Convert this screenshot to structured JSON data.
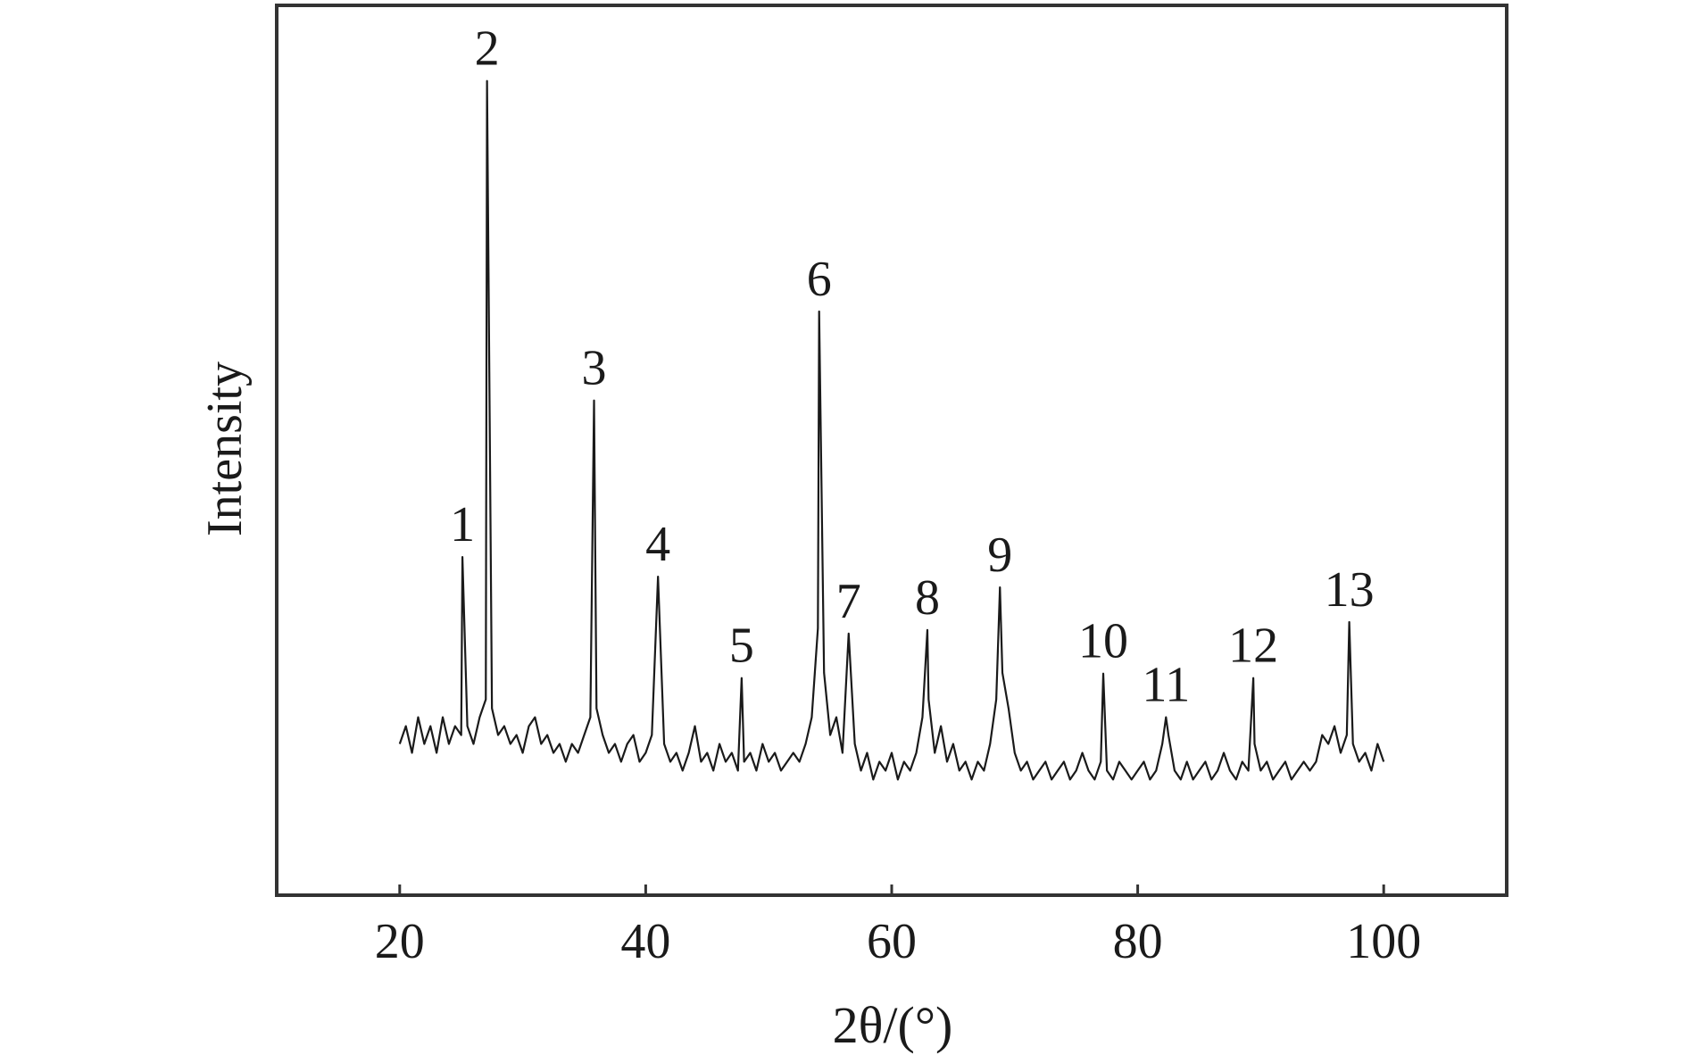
{
  "chart_data": {
    "type": "line",
    "xlabel": "2θ/(°)",
    "ylabel": "Intensity",
    "xlim": [
      10,
      110
    ],
    "ylim": [
      0,
      100
    ],
    "xticks": [
      20,
      40,
      60,
      80,
      100
    ],
    "series": [
      {
        "color": "#1a1a1a",
        "x": [
          20,
          20.5,
          21,
          21.5,
          22,
          22.5,
          23,
          23.5,
          24,
          24.5,
          25,
          25.1,
          25.5,
          26,
          26.5,
          27,
          27.1,
          27.5,
          28,
          28.5,
          29,
          29.5,
          30,
          30.5,
          31,
          31.5,
          32,
          32.5,
          33,
          33.5,
          34,
          34.5,
          35,
          35.5,
          35.8,
          36,
          36.5,
          37,
          37.5,
          38,
          38.5,
          39,
          39.5,
          40,
          40.5,
          41,
          41.5,
          42,
          42.5,
          43,
          43.5,
          44,
          44.5,
          45,
          45.5,
          46,
          46.5,
          47,
          47.5,
          47.8,
          48,
          48.5,
          49,
          49.5,
          50,
          50.5,
          51,
          51.5,
          52,
          52.5,
          53,
          53.5,
          54,
          54.1,
          54.5,
          55,
          55.5,
          56,
          56.5,
          57,
          57.5,
          58,
          58.5,
          59,
          59.5,
          60,
          60.5,
          61,
          61.5,
          62,
          62.5,
          62.9,
          63,
          63.5,
          64,
          64.5,
          65,
          65.5,
          66,
          66.5,
          67,
          67.5,
          68,
          68.5,
          68.8,
          69,
          69.5,
          70,
          70.5,
          71,
          71.5,
          72,
          72.5,
          73,
          73.5,
          74,
          74.5,
          75,
          75.5,
          76,
          76.5,
          77,
          77.2,
          77.5,
          78,
          78.5,
          79,
          79.5,
          80,
          80.5,
          81,
          81.5,
          82,
          82.3,
          82.5,
          83,
          83.5,
          84,
          84.5,
          85,
          85.5,
          86,
          86.5,
          87,
          87.5,
          88,
          88.5,
          89,
          89.4,
          89.5,
          90,
          90.5,
          91,
          91.5,
          92,
          92.5,
          93,
          93.5,
          94,
          94.5,
          95,
          95.5,
          96,
          96.5,
          97,
          97.2,
          97.5,
          98,
          98.5,
          99,
          99.5,
          100
        ],
        "values": [
          17,
          19,
          16,
          20,
          17,
          19,
          16,
          20,
          17,
          19,
          18,
          38,
          19,
          17,
          20,
          22,
          91.5,
          21,
          18,
          19,
          17,
          18,
          16,
          19,
          20,
          17,
          18,
          16,
          17,
          15,
          17,
          16,
          18,
          20,
          55.6,
          21,
          18,
          16,
          17,
          15,
          17,
          18,
          15,
          16,
          18,
          35.8,
          17,
          15,
          16,
          14,
          16,
          19,
          15,
          16,
          14,
          17,
          15,
          16,
          14,
          24.4,
          15,
          16,
          14,
          17,
          15,
          16,
          14,
          15,
          16,
          15,
          17,
          20,
          30,
          65.6,
          25,
          18,
          20,
          16,
          29.4,
          17,
          14,
          16,
          13,
          15,
          14,
          16,
          13,
          15,
          14,
          16,
          20,
          29.8,
          22,
          16,
          19,
          15,
          17,
          14,
          15,
          13,
          15,
          14,
          17,
          22,
          34.6,
          25,
          21,
          16,
          14,
          15,
          13,
          14,
          15,
          13,
          14,
          15,
          13,
          14,
          16,
          14,
          13,
          15,
          24.9,
          14,
          13,
          15,
          14,
          13,
          14,
          15,
          13,
          14,
          17,
          20,
          18,
          14,
          13,
          15,
          13,
          14,
          15,
          13,
          14,
          16,
          14,
          13,
          15,
          14,
          24.4,
          17,
          14,
          15,
          13,
          14,
          15,
          13,
          14,
          15,
          14,
          15,
          18,
          17,
          19,
          16,
          18,
          30.7,
          17,
          15,
          16,
          14,
          17,
          15
        ]
      }
    ],
    "annotations": [
      {
        "text": "1",
        "x": 25.1,
        "y": 38
      },
      {
        "text": "2",
        "x": 27.1,
        "y": 91.5
      },
      {
        "text": "3",
        "x": 35.8,
        "y": 55.6
      },
      {
        "text": "4",
        "x": 41.0,
        "y": 35.8
      },
      {
        "text": "5",
        "x": 47.8,
        "y": 24.4
      },
      {
        "text": "6",
        "x": 54.1,
        "y": 65.6
      },
      {
        "text": "7",
        "x": 56.5,
        "y": 29.4
      },
      {
        "text": "8",
        "x": 62.9,
        "y": 29.8
      },
      {
        "text": "9",
        "x": 68.8,
        "y": 34.6
      },
      {
        "text": "10",
        "x": 77.2,
        "y": 24.9
      },
      {
        "text": "11",
        "x": 82.3,
        "y": 20
      },
      {
        "text": "12",
        "x": 89.4,
        "y": 24.4
      },
      {
        "text": "13",
        "x": 97.2,
        "y": 30.7
      }
    ]
  }
}
